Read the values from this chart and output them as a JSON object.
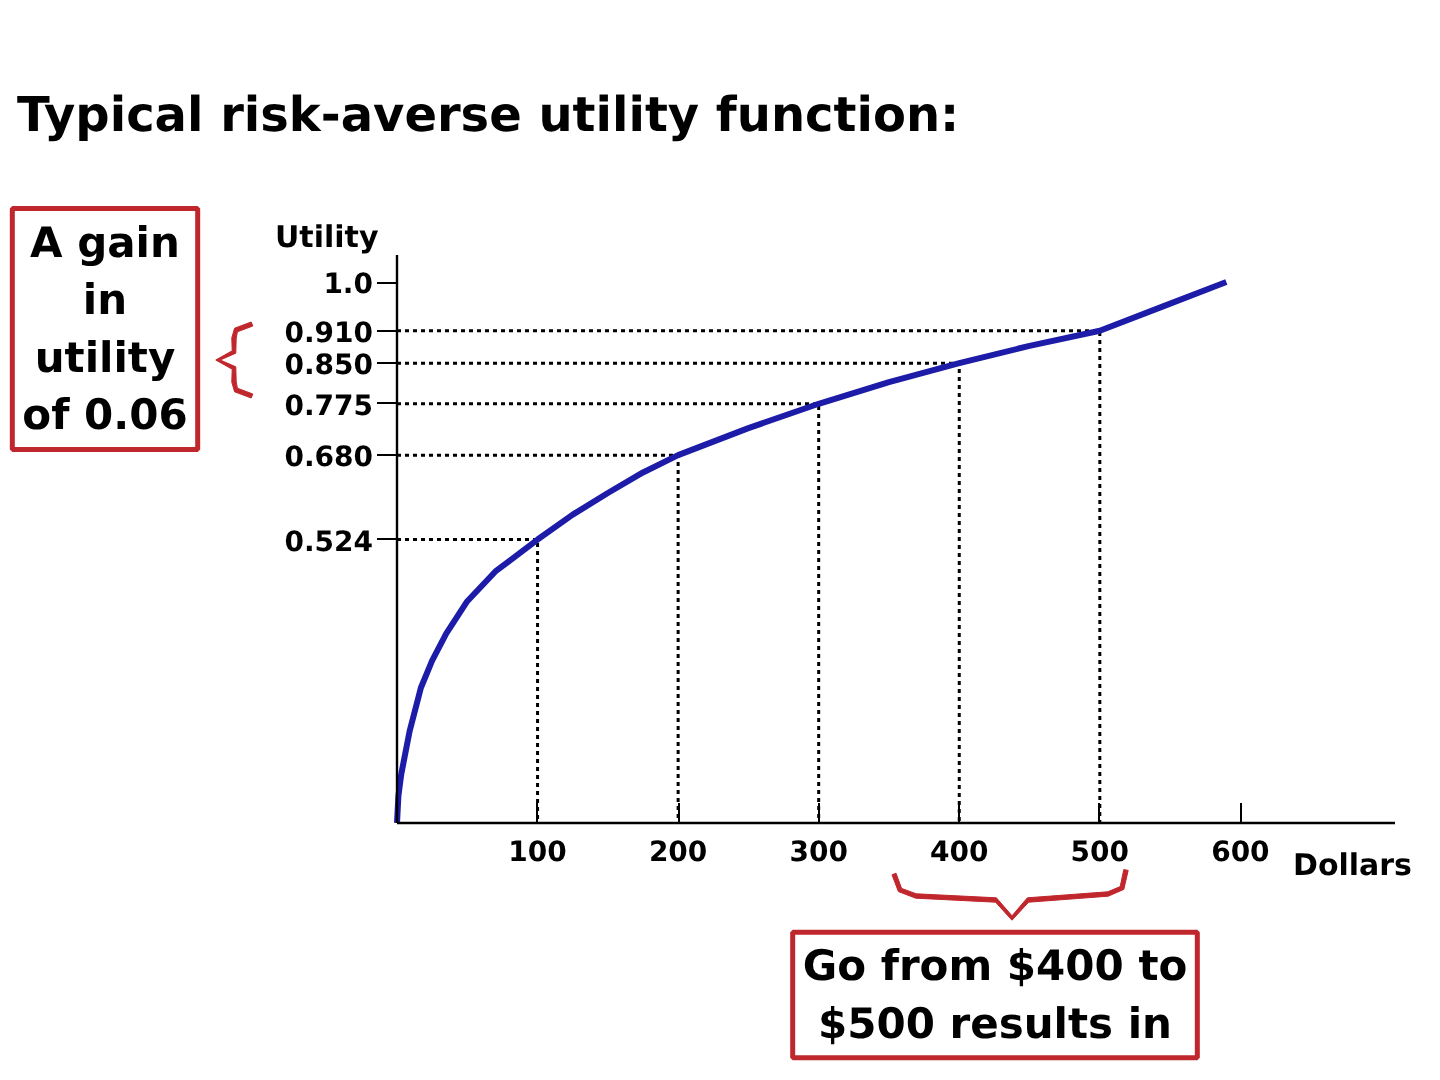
{
  "chart_data": {
    "type": "line",
    "title": "Typical risk-averse utility function:",
    "xlabel": "Dollars",
    "ylabel": "Utility",
    "xlim": [
      0,
      710
    ],
    "ylim": [
      0,
      1.05
    ],
    "xticks": [
      100,
      200,
      300,
      400,
      500,
      600
    ],
    "yticks": [
      {
        "value": 1.0,
        "label": "1.0"
      },
      {
        "value": 0.91,
        "label": "0.910"
      },
      {
        "value": 0.85,
        "label": "0.850"
      },
      0.775,
      {
        "value": 0.68,
        "label": "0.680"
      },
      0.524
    ],
    "series": [
      {
        "x": [
          0,
          100,
          100
        ],
        "values": [
          0.524,
          0.524,
          0
        ],
        "color": "#000000",
        "line_style": "dotted"
      },
      {
        "x": [
          0,
          200,
          200
        ],
        "values": [
          0.68,
          0.68,
          0
        ],
        "color": "#000000",
        "line_style": "dotted"
      },
      {
        "x": [
          0,
          300,
          300
        ],
        "values": [
          0.775,
          0.775,
          0
        ],
        "color": "#000000",
        "line_style": "dotted"
      },
      {
        "x": [
          0,
          400,
          400
        ],
        "values": [
          0.85,
          0.85,
          0
        ],
        "color": "#000000",
        "line_style": "dotted"
      },
      {
        "x": [
          0,
          500,
          500
        ],
        "values": [
          0.91,
          0.91,
          0
        ],
        "color": "#000000",
        "line_style": "dotted"
      },
      {
        "x": [
          0,
          1,
          3,
          6,
          9,
          13,
          17,
          25,
          35,
          50,
          70,
          100,
          125,
          150,
          175,
          200,
          250,
          300,
          350,
          400,
          450,
          500,
          545,
          590
        ],
        "values": [
          0,
          0.05,
          0.09,
          0.13,
          0.17,
          0.21,
          0.25,
          0.3,
          0.35,
          0.41,
          0.465,
          0.524,
          0.57,
          0.61,
          0.648,
          0.68,
          0.73,
          0.775,
          0.815,
          0.85,
          0.882,
          0.91,
          0.955,
          1.0
        ],
        "color": "#1c1ca8",
        "line_style": "solid"
      }
    ],
    "annotations": [
      "A gain in utility of 0.06",
      "Go from $400 to $500 results in"
    ]
  }
}
